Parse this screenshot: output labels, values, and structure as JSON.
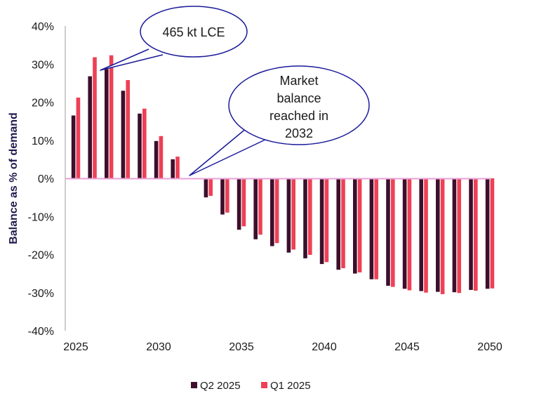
{
  "chart_data": {
    "type": "bar",
    "title": "",
    "xlabel": "",
    "ylabel": "Balance as % of demand",
    "ylim": [
      -40,
      40
    ],
    "yticks": [
      40,
      30,
      20,
      10,
      0,
      -10,
      -20,
      -30,
      -40
    ],
    "ytick_labels": [
      "40%",
      "30%",
      "20%",
      "10%",
      "0%",
      "-10%",
      "-20%",
      "-30%",
      "-40%"
    ],
    "xtick_labels": [
      "2025",
      "2030",
      "2035",
      "2040",
      "2045",
      "2050"
    ],
    "xticks": [
      2025,
      2030,
      2035,
      2040,
      2045,
      2050
    ],
    "categories": [
      2025,
      2026,
      2027,
      2028,
      2029,
      2030,
      2031,
      2032,
      2033,
      2034,
      2035,
      2036,
      2037,
      2038,
      2039,
      2040,
      2041,
      2042,
      2043,
      2044,
      2045,
      2046,
      2047,
      2048,
      2049,
      2050
    ],
    "series": [
      {
        "name": "Q2 2025",
        "color": "#3d0f2c",
        "values": [
          16.5,
          26.8,
          28.7,
          23.0,
          17.0,
          9.8,
          5.0,
          0,
          -5.0,
          -9.5,
          -13.5,
          -16.0,
          -17.8,
          -19.5,
          -21.0,
          -22.5,
          -24.0,
          -25.0,
          -26.5,
          -28.2,
          -29.0,
          -29.6,
          -29.8,
          -29.9,
          -29.3,
          -29.0
        ]
      },
      {
        "name": "Q1 2025",
        "color": "#ee4056",
        "values": [
          21.2,
          31.8,
          32.3,
          25.8,
          18.3,
          11.1,
          5.7,
          0,
          -4.6,
          -9.0,
          -12.6,
          -14.8,
          -17.0,
          -18.7,
          -20.1,
          -22.0,
          -23.6,
          -24.7,
          -26.5,
          -28.5,
          -29.4,
          -30.0,
          -30.4,
          -30.1,
          -29.5,
          -28.9
        ]
      }
    ],
    "zero_line_color": "#e8a0d6",
    "annotations": [
      {
        "name": "peak-surplus",
        "lines": [
          "465 kt LCE"
        ],
        "points_to_year": 2027
      },
      {
        "name": "market-balance",
        "lines": [
          "Market",
          "balance",
          "reached in",
          "2032"
        ],
        "points_to_year": 2032
      }
    ],
    "legend": {
      "position": "bottom-center"
    },
    "grid": false
  }
}
